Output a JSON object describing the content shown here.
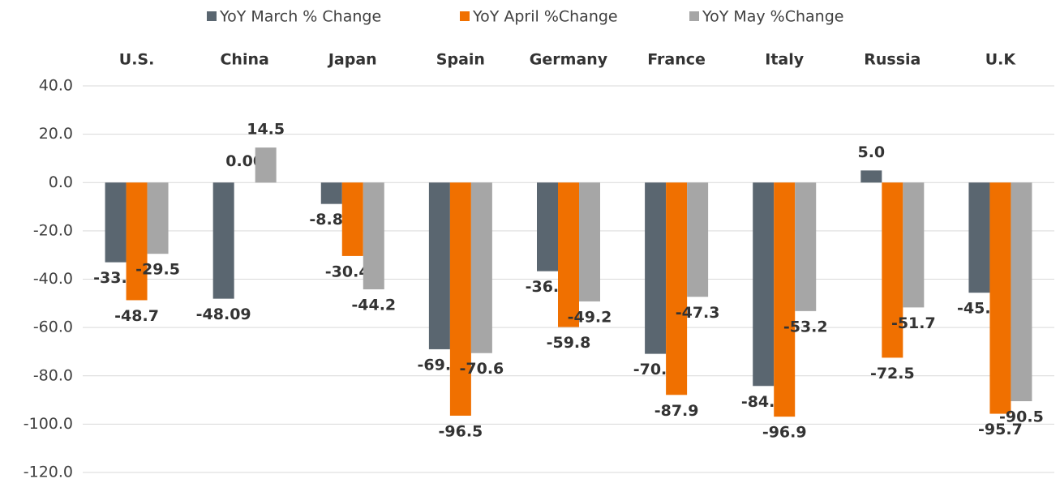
{
  "chart_data": {
    "type": "bar",
    "categories": [
      "U.S.",
      "China",
      "Japan",
      "Spain",
      "Germany",
      "France",
      "Italy",
      "Russia",
      "U.K"
    ],
    "series": [
      {
        "name": "YoY March % Change",
        "color": "#5a6670",
        "values": [
          -33.0,
          -48.09,
          -8.86,
          -69.0,
          -36.7,
          -70.9,
          -84.2,
          5.0,
          -45.6
        ],
        "value_labels": [
          "-33.0",
          "-48.09",
          "-8.86",
          "-69.0",
          "-36.7",
          "-70.9",
          "-84.2",
          "5.0",
          "-45.6"
        ]
      },
      {
        "name": "YoY April %Change",
        "color": "#f07000",
        "values": [
          -48.7,
          0,
          -30.41,
          -96.5,
          -59.8,
          -87.9,
          -96.9,
          -72.5,
          -95.7
        ],
        "value_labels": [
          "-48.7",
          "0.00",
          "-30.41",
          "-96.5",
          "-59.8",
          "-87.9",
          "-96.9",
          "-72.5",
          "-95.7"
        ]
      },
      {
        "name": "YoY May %Change",
        "color": "#a6a6a6",
        "values": [
          -29.5,
          14.5,
          -44.2,
          -70.6,
          -49.2,
          -47.3,
          -53.2,
          -51.7,
          -90.5
        ],
        "value_labels": [
          "-29.5",
          "14.5",
          "-44.2",
          "-70.6",
          "-49.2",
          "-47.3",
          "-53.2",
          "-51.7",
          "-90.5"
        ]
      }
    ],
    "ylim": [
      -120,
      40
    ],
    "yticks": [
      {
        "value": -120,
        "label": "-120.0"
      },
      {
        "value": -100,
        "label": "-100.0"
      },
      {
        "value": -80,
        "label": "-80.0"
      },
      {
        "value": -60,
        "label": "-60.0"
      },
      {
        "value": -40,
        "label": "-40.0"
      },
      {
        "value": -20,
        "label": "-20.0"
      },
      {
        "value": 0,
        "label": "0.0"
      },
      {
        "value": 20,
        "label": "20.0"
      },
      {
        "value": 40,
        "label": "40.0"
      }
    ],
    "grid": true,
    "legend": "top"
  }
}
